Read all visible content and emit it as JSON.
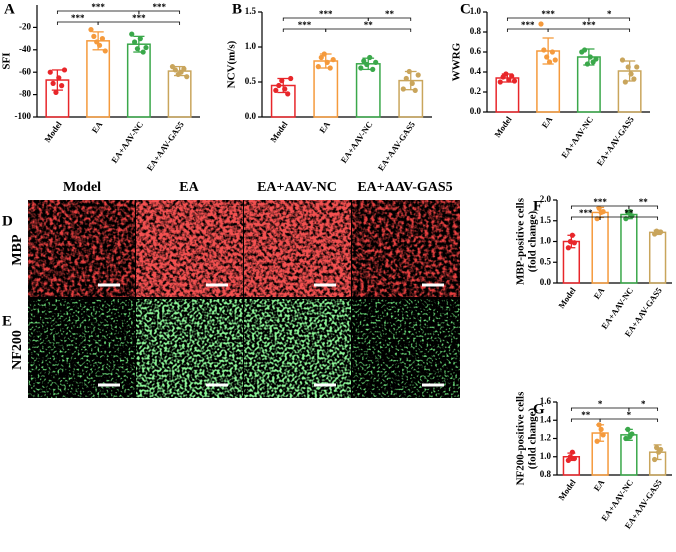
{
  "chart_data": [
    {
      "type": "bar",
      "label": "A",
      "ylabel": [
        "SFI"
      ],
      "categories": [
        "Model",
        "EA",
        "EA+AAV-NC",
        "EA+AAV-GAS5"
      ],
      "colors": [
        "#e8262a",
        "#f59a3c",
        "#3aa84a",
        "#c9a55c"
      ],
      "values": [
        -67,
        -32,
        -35,
        -59
      ],
      "errors": [
        9,
        8,
        7,
        4
      ],
      "points": [
        [
          -60,
          -70,
          -78,
          -65,
          -72,
          -58
        ],
        [
          -22,
          -28,
          -33,
          -36,
          -30,
          -41
        ],
        [
          -26,
          -33,
          -39,
          -30,
          -42,
          -38
        ],
        [
          -55,
          -58,
          -62,
          -60,
          -57,
          -64
        ]
      ],
      "ylim": [
        -100,
        0
      ],
      "yticks": [
        -20,
        -40,
        -60,
        -80,
        -100
      ],
      "annotations": [
        {
          "from": 0,
          "to": 2,
          "label": "***"
        },
        {
          "from": 2,
          "to": 3,
          "label": "***"
        },
        {
          "from": 0,
          "to": 1,
          "label": "***"
        },
        {
          "from": 1,
          "to": 3,
          "label": "***"
        }
      ]
    },
    {
      "type": "bar",
      "label": "B",
      "ylabel": [
        "NCV(m/s)"
      ],
      "categories": [
        "Model",
        "EA",
        "EA+AAV-NC",
        "EA+AAV-GAS5"
      ],
      "colors": [
        "#e8262a",
        "#f59a3c",
        "#3aa84a",
        "#c9a55c"
      ],
      "values": [
        0.45,
        0.8,
        0.76,
        0.52
      ],
      "errors": [
        0.1,
        0.1,
        0.08,
        0.13
      ],
      "points": [
        [
          0.38,
          0.45,
          0.52,
          0.4,
          0.33,
          0.55
        ],
        [
          0.72,
          0.85,
          0.9,
          0.78,
          0.7,
          0.82
        ],
        [
          0.7,
          0.8,
          0.75,
          0.85,
          0.68,
          0.78
        ],
        [
          0.4,
          0.55,
          0.65,
          0.48,
          0.38,
          0.6
        ]
      ],
      "ylim": [
        0,
        1.5
      ],
      "yticks": [
        {
          "value": 0,
          "label": "0.0"
        },
        0.5,
        {
          "value": 1,
          "label": "1.0"
        },
        1.5
      ],
      "annotations": [
        {
          "from": 0,
          "to": 2,
          "label": "***"
        },
        {
          "from": 2,
          "to": 3,
          "label": "**"
        },
        {
          "from": 0,
          "to": 1,
          "label": "***"
        },
        {
          "from": 1,
          "to": 3,
          "label": "**"
        }
      ]
    },
    {
      "type": "bar",
      "label": "C",
      "ylabel": [
        "WWRG"
      ],
      "categories": [
        "Model",
        "EA",
        "EA+AAV-NC",
        "EA+AAV-GAS5"
      ],
      "colors": [
        "#e8262a",
        "#f59a3c",
        "#3aa84a",
        "#c9a55c"
      ],
      "values": [
        0.34,
        0.61,
        0.55,
        0.41
      ],
      "errors": [
        0.04,
        0.13,
        0.08,
        0.1
      ],
      "points": [
        [
          0.3,
          0.35,
          0.38,
          0.32,
          0.36,
          0.31
        ],
        [
          0.88,
          0.62,
          0.55,
          0.5,
          0.6,
          0.52
        ],
        [
          0.6,
          0.62,
          0.48,
          0.55,
          0.5,
          0.53
        ],
        [
          0.52,
          0.3,
          0.45,
          0.38,
          0.33,
          0.45
        ]
      ],
      "ylim": [
        0,
        1
      ],
      "yticks": [
        {
          "value": 0,
          "label": "0.0"
        },
        0.2,
        0.4,
        0.6,
        0.8,
        {
          "value": 1,
          "label": "1.0"
        }
      ],
      "annotations": [
        {
          "from": 0,
          "to": 2,
          "label": "***"
        },
        {
          "from": 2,
          "to": 3,
          "label": "*"
        },
        {
          "from": 0,
          "to": 1,
          "label": "***"
        },
        {
          "from": 1,
          "to": 3,
          "label": "***"
        }
      ]
    },
    {
      "type": "bar",
      "label": "F",
      "ylabel": [
        "MBP-positive cells",
        "(fold change)"
      ],
      "categories": [
        "Model",
        "EA",
        "EA+AAV-NC",
        "EA+AAV-GAS5"
      ],
      "colors": [
        "#e8262a",
        "#f59a3c",
        "#3aa84a",
        "#c9a55c"
      ],
      "values": [
        1.0,
        1.7,
        1.65,
        1.22
      ],
      "errors": [
        0.15,
        0.12,
        0.1,
        0.05
      ],
      "points": [
        [
          0.85,
          1.0,
          1.15,
          0.97
        ],
        [
          1.55,
          1.8,
          1.7,
          1.72
        ],
        [
          1.55,
          1.7,
          1.72,
          1.62
        ],
        [
          1.18,
          1.25,
          1.22,
          1.23
        ]
      ],
      "ylim": [
        0,
        2
      ],
      "yticks": [
        {
          "value": 0,
          "label": "0.0"
        },
        0.5,
        {
          "value": 1,
          "label": "1.0"
        },
        1.5,
        {
          "value": 2,
          "label": "2.0"
        }
      ],
      "annotations": [
        {
          "from": 0,
          "to": 2,
          "label": "***"
        },
        {
          "from": 2,
          "to": 3,
          "label": "**"
        },
        {
          "from": 0,
          "to": 1,
          "label": "***"
        },
        {
          "from": 1,
          "to": 3,
          "label": "**"
        }
      ]
    },
    {
      "type": "bar",
      "label": "G",
      "ylabel": [
        "NF200-positive cells",
        "(fold change)"
      ],
      "categories": [
        "Model",
        "EA",
        "EA+AAV-NC",
        "EA+AAV-GAS5"
      ],
      "colors": [
        "#e8262a",
        "#f59a3c",
        "#3aa84a",
        "#c9a55c"
      ],
      "values": [
        1.0,
        1.26,
        1.24,
        1.05
      ],
      "errors": [
        0.04,
        0.09,
        0.06,
        0.08
      ],
      "points": [
        [
          0.96,
          1.0,
          1.05,
          0.98
        ],
        [
          1.17,
          1.35,
          1.3,
          1.24
        ],
        [
          1.2,
          1.3,
          1.22,
          1.25
        ],
        [
          0.97,
          1.1,
          1.05,
          1.08
        ]
      ],
      "ylim": [
        0.8,
        1.6
      ],
      "yticks": [
        0.8,
        {
          "value": 1,
          "label": "1.0"
        },
        1.2,
        1.4,
        1.6
      ],
      "annotations": [
        {
          "from": 0,
          "to": 2,
          "label": "*"
        },
        {
          "from": 2,
          "to": 3,
          "label": "*"
        },
        {
          "from": 0,
          "to": 1,
          "label": "**"
        },
        {
          "from": 1,
          "to": 3,
          "label": "*"
        }
      ]
    }
  ],
  "micrographs": {
    "panel_labels": [
      "D",
      "E"
    ],
    "columns": [
      "Model",
      "EA",
      "EA+AAV-NC",
      "EA+AAV-GAS5"
    ],
    "rows": [
      "MBP",
      "NF200"
    ]
  }
}
